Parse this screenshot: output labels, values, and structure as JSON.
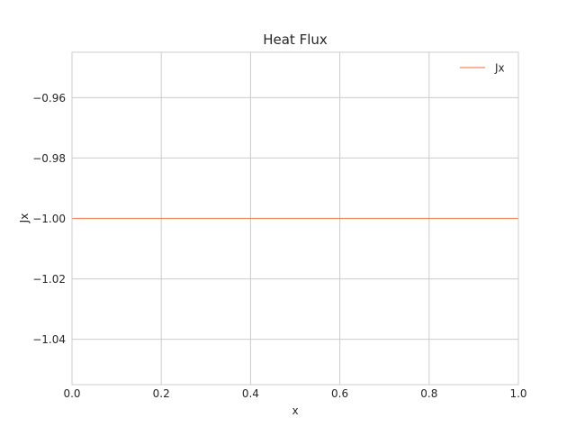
{
  "chart_data": {
    "type": "line",
    "title": "Heat Flux",
    "xlabel": "x",
    "ylabel": "Jx",
    "xlim": [
      0,
      1
    ],
    "ylim": [
      -1.055,
      -0.945
    ],
    "x_ticks": [
      0,
      0.2,
      0.4,
      0.6,
      0.8,
      1.0
    ],
    "x_tick_labels": [
      "0.0",
      "0.2",
      "0.4",
      "0.6",
      "0.8",
      "1.0"
    ],
    "y_ticks": [
      -0.96,
      -0.98,
      -1.0,
      -1.02,
      -1.04
    ],
    "y_tick_labels": [
      "−0.96",
      "−0.98",
      "−1.00",
      "−1.02",
      "−1.04"
    ],
    "grid": true,
    "legend_position": "top-right",
    "series": [
      {
        "name": "Jx",
        "color": "#f08a5d",
        "x": [
          0,
          1
        ],
        "y": [
          -1.0,
          -1.0
        ]
      }
    ]
  }
}
